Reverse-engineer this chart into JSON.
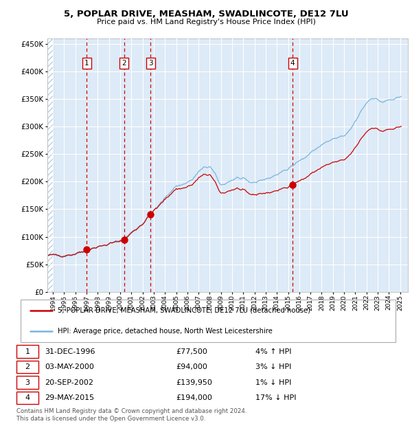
{
  "title_line1": "5, POPLAR DRIVE, MEASHAM, SWADLINCOTE, DE12 7LU",
  "title_line2": "Price paid vs. HM Land Registry's House Price Index (HPI)",
  "transactions": [
    {
      "label": "1",
      "date_str": "31-DEC-1996",
      "date_x": 1997.0,
      "price": 77500,
      "hpi_pct": "4% ↑ HPI"
    },
    {
      "label": "2",
      "date_str": "03-MAY-2000",
      "date_x": 2000.35,
      "price": 94000,
      "hpi_pct": "3% ↓ HPI"
    },
    {
      "label": "3",
      "date_str": "20-SEP-2002",
      "date_x": 2002.72,
      "price": 139950,
      "hpi_pct": "1% ↓ HPI"
    },
    {
      "label": "4",
      "date_str": "29-MAY-2015",
      "date_x": 2015.41,
      "price": 194000,
      "hpi_pct": "17% ↓ HPI"
    }
  ],
  "legend_line1": "5, POPLAR DRIVE, MEASHAM, SWADLINCOTE, DE12 7LU (detached house)",
  "legend_line2": "HPI: Average price, detached house, North West Leicestershire",
  "footer_line1": "Contains HM Land Registry data © Crown copyright and database right 2024.",
  "footer_line2": "This data is licensed under the Open Government Licence v3.0.",
  "hpi_color": "#7ab4dd",
  "price_color": "#cc0000",
  "marker_color": "#cc0000",
  "vline_color": "#cc0000",
  "bg_color": "#ddeaf7",
  "grid_color": "#ffffff",
  "ylim": [
    0,
    460000
  ],
  "yticks": [
    0,
    50000,
    100000,
    150000,
    200000,
    250000,
    300000,
    350000,
    400000,
    450000
  ],
  "xlim_start": 1993.5,
  "xlim_end": 2025.7,
  "xtick_years": [
    1994,
    1995,
    1996,
    1997,
    1998,
    1999,
    2000,
    2001,
    2002,
    2003,
    2004,
    2005,
    2006,
    2007,
    2008,
    2009,
    2010,
    2011,
    2012,
    2013,
    2014,
    2015,
    2016,
    2017,
    2018,
    2019,
    2020,
    2021,
    2022,
    2023,
    2024,
    2025
  ]
}
